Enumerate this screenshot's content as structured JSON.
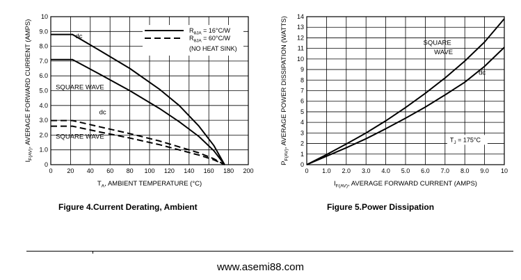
{
  "chart_data": [
    {
      "type": "line",
      "xlabel_main": "T",
      "xlabel_sub": "A",
      "xlabel_rest": ", AMBIENT TEMPERATURE (°C)",
      "ylabel_main": "I",
      "ylabel_sub": "F(AV)",
      "ylabel_rest": ", AVERAGE FORWARD CURRENT (AMPS)",
      "xlim": [
        0,
        200
      ],
      "ylim": [
        0,
        10
      ],
      "xticks": [
        "0",
        "20",
        "40",
        "60",
        "80",
        "100",
        "120",
        "140",
        "160",
        "180",
        "200"
      ],
      "yticks": [
        "0",
        "1.0",
        "2.0",
        "3.0",
        "4.0",
        "5.0",
        "6.0",
        "7.0",
        "8.0",
        "9.0",
        "10"
      ],
      "grid": true,
      "series": [
        {
          "group": "16",
          "style": "solid",
          "x": [
            0,
            22,
            50,
            80,
            110,
            130,
            150,
            165,
            176
          ],
          "y": [
            8.8,
            8.8,
            7.7,
            6.5,
            5.1,
            4.0,
            2.6,
            1.3,
            0
          ]
        },
        {
          "group": "16",
          "style": "solid",
          "x": [
            0,
            22,
            50,
            80,
            110,
            130,
            150,
            165,
            176
          ],
          "y": [
            7.1,
            7.1,
            6.1,
            5.0,
            3.8,
            2.9,
            1.9,
            0.95,
            0
          ]
        },
        {
          "group": "60",
          "style": "dashed",
          "x": [
            0,
            22,
            50,
            80,
            110,
            130,
            150,
            165,
            176
          ],
          "y": [
            2.98,
            2.98,
            2.55,
            2.1,
            1.6,
            1.2,
            0.8,
            0.4,
            0
          ]
        },
        {
          "group": "60",
          "style": "dashed",
          "x": [
            0,
            22,
            50,
            80,
            110,
            130,
            150,
            165,
            176
          ],
          "y": [
            2.6,
            2.6,
            2.2,
            1.8,
            1.35,
            1.0,
            0.65,
            0.33,
            0
          ]
        }
      ],
      "curve_labels": [
        {
          "text": "dc",
          "x": 25,
          "y": 8.55
        },
        {
          "text": "SQUARE WAVE",
          "x": 5,
          "y": 5.1
        },
        {
          "text": "dc",
          "x": 49,
          "y": 3.4
        },
        {
          "text": "SQUARE WAVE",
          "x": 5,
          "y": 1.75
        }
      ],
      "legend": {
        "placement": "top-right",
        "items": [
          {
            "style": "solid",
            "r_sub": "θJA",
            "text": " = 16°C/W"
          },
          {
            "style": "dashed",
            "r_sub": "θJA",
            "text": " = 60°C/W"
          }
        ],
        "note": "(NO HEAT SINK)",
        "r_main": "R"
      },
      "caption": "Figure 4.Current  Derating, Ambient"
    },
    {
      "type": "line",
      "xlabel_main": "I",
      "xlabel_sub": "F(AV)",
      "xlabel_rest": ", AVERAGE FORWARD CURRENT (AMPS)",
      "ylabel_main": "P",
      "ylabel_sub": "F(AV)",
      "ylabel_rest": ", AVERAGE POWER DISSIPATION (WATTS)",
      "xlim": [
        0,
        10
      ],
      "ylim": [
        0,
        14
      ],
      "xticks": [
        "0",
        "1.0",
        "2.0",
        "3.0",
        "4.0",
        "5.0",
        "6.0",
        "7.0",
        "8.0",
        "9.0",
        "10"
      ],
      "yticks": [
        "0",
        "1",
        "2",
        "3",
        "4",
        "5",
        "6",
        "7",
        "8",
        "9",
        "10",
        "11",
        "12",
        "13",
        "14"
      ],
      "grid": true,
      "series": [
        {
          "style": "solid",
          "x": [
            0,
            1,
            2,
            3,
            4,
            5,
            6,
            7,
            8,
            9,
            10
          ],
          "y": [
            0,
            0.95,
            1.95,
            3.0,
            4.15,
            5.4,
            6.75,
            8.2,
            9.8,
            11.6,
            13.8
          ]
        },
        {
          "style": "solid",
          "x": [
            0,
            1,
            2,
            3,
            4,
            5,
            6,
            7,
            8,
            9,
            10
          ],
          "y": [
            0,
            0.8,
            1.6,
            2.45,
            3.4,
            4.4,
            5.45,
            6.6,
            7.8,
            9.3,
            11.1
          ]
        }
      ],
      "curve_labels": [
        {
          "text": "SQUARE",
          "x": 5.9,
          "y": 11.35
        },
        {
          "text": "WAVE",
          "x": 6.45,
          "y": 10.45
        },
        {
          "text": "dc",
          "x": 8.7,
          "y": 8.5
        }
      ],
      "annotation": {
        "main": "T",
        "sub": "J",
        "rest": " = 175°C",
        "x": 7.25,
        "y": 2.15
      },
      "caption": "Figure 5.Power  Dissipation"
    }
  ],
  "footer": {
    "website": "www.asemi88.com"
  }
}
